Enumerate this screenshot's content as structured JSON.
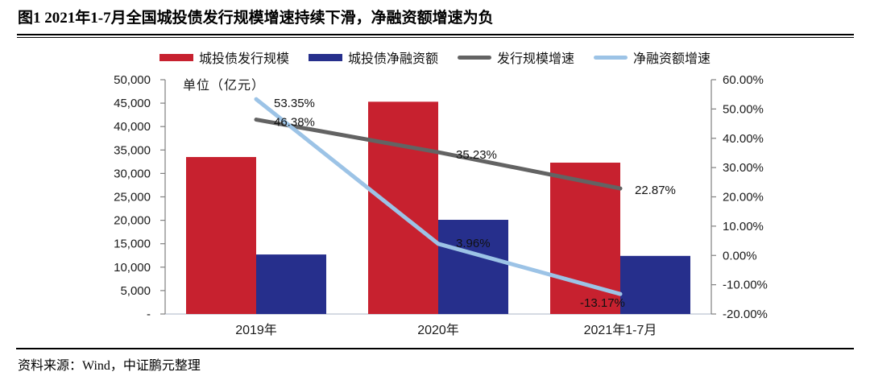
{
  "title": "图1 2021年1-7月全国城投债发行规模增速持续下滑，净融资额增速为负",
  "source": "资料来源：Wind，中证鹏元整理",
  "chart_data": {
    "type": "combo_bar_line",
    "title": "图1 2021年1-7月全国城投债发行规模增速持续下滑，净融资额增速为负",
    "unit_label": "单位（亿元）",
    "legend_position": "top",
    "grid": false,
    "categories": [
      "2019年",
      "2020年",
      "2021年1-7月"
    ],
    "bar_series": [
      {
        "key": "issuance",
        "name": "城投债发行规模",
        "color": "#C7212F",
        "axis": "left",
        "values": [
          33500,
          45300,
          32300
        ]
      },
      {
        "key": "net-financing",
        "name": "城投债净融资额",
        "color": "#262F8C",
        "axis": "left",
        "values": [
          12700,
          20100,
          12400
        ]
      }
    ],
    "line_series": [
      {
        "key": "issuance-growth",
        "name": "发行规模增速",
        "color": "#636363",
        "axis": "right",
        "values": [
          46.38,
          35.23,
          22.87
        ],
        "labels": [
          "46.38%",
          "35.23%",
          "22.87%"
        ]
      },
      {
        "key": "net-financing-growth",
        "name": "净融资额增速",
        "color": "#9CC3E6",
        "axis": "right",
        "values": [
          53.35,
          3.96,
          -13.17
        ],
        "labels": [
          "53.35%",
          "3.96%",
          "-13.17%"
        ]
      }
    ],
    "left_axis": {
      "min": 0,
      "max": 50000,
      "tick_labels": [
        "-",
        "5,000",
        "10,000",
        "15,000",
        "20,000",
        "25,000",
        "30,000",
        "35,000",
        "40,000",
        "45,000",
        "50,000"
      ]
    },
    "right_axis": {
      "min": -20,
      "max": 60,
      "tick_labels": [
        "-20.00%",
        "-10.00%",
        "0.00%",
        "10.00%",
        "20.00%",
        "30.00%",
        "40.00%",
        "50.00%",
        "60.00%"
      ]
    }
  }
}
